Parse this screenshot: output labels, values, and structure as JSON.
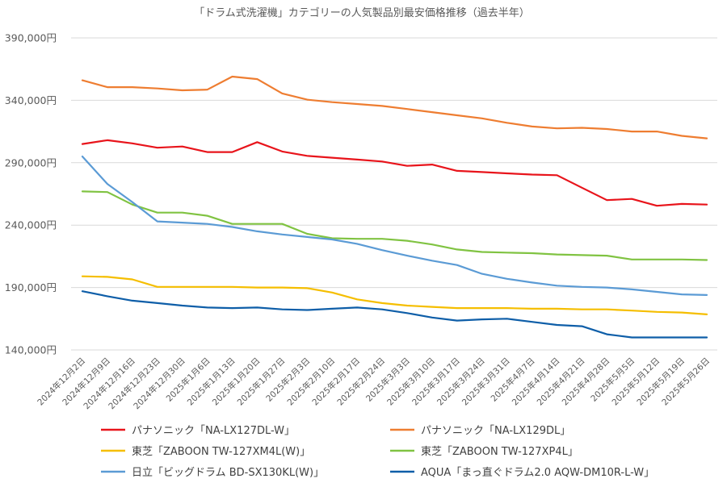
{
  "chart_data": {
    "type": "line",
    "title": "「ドラム式洗濯機」カテゴリーの人気製品別最安価格推移（過去半年）",
    "xlabel": "",
    "ylabel": "",
    "ylim": [
      140000,
      390000
    ],
    "yticks": [
      "140,000円",
      "190,000円",
      "240,000円",
      "290,000円",
      "340,000円",
      "390,000円"
    ],
    "ytick_values": [
      140000,
      190000,
      240000,
      290000,
      340000,
      390000
    ],
    "grid": true,
    "legend_position": "bottom",
    "categories": [
      "2024年12月2日",
      "2024年12月9日",
      "2024年12月16日",
      "2024年12月23日",
      "2024年12月30日",
      "2025年1月6日",
      "2025年1月13日",
      "2025年1月20日",
      "2025年1月27日",
      "2025年2月3日",
      "2025年2月10日",
      "2025年2月17日",
      "2025年2月24日",
      "2025年3月3日",
      "2025年3月10日",
      "2025年3月17日",
      "2025年3月24日",
      "2025年3月31日",
      "2025年4月7日",
      "2025年4月14日",
      "2025年4月21日",
      "2025年4月28日",
      "2025年5月5日",
      "2025年5月12日",
      "2025年5月19日",
      "2025年5月26日"
    ],
    "series": [
      {
        "name": "パナソニック「NA-LX127DL-W」",
        "color": "#e8141b",
        "values": [
          305000,
          308000,
          305500,
          302000,
          303000,
          298500,
          298500,
          306500,
          299000,
          295500,
          294000,
          292500,
          291000,
          287500,
          288500,
          283500,
          282500,
          281500,
          280500,
          280000,
          270000,
          260000,
          261000,
          255500,
          257000,
          256500
        ]
      },
      {
        "name": "パナソニック「NA-LX129DL」",
        "color": "#ee7d31",
        "values": [
          356000,
          350500,
          350500,
          349500,
          348000,
          348500,
          359000,
          357000,
          345500,
          340500,
          338500,
          337000,
          335500,
          333000,
          330500,
          328000,
          325500,
          322000,
          319000,
          317500,
          318000,
          317000,
          315000,
          315000,
          311500,
          309500
        ]
      },
      {
        "name": "東芝「ZABOON TW-127XM4L(W)」",
        "color": "#f5be00",
        "values": [
          199000,
          198500,
          196500,
          190500,
          190500,
          190500,
          190500,
          190000,
          190000,
          189500,
          186000,
          180500,
          177500,
          175500,
          174500,
          173500,
          173500,
          173500,
          173000,
          173000,
          172500,
          172500,
          171500,
          170500,
          170000,
          168500
        ]
      },
      {
        "name": "東芝「ZABOON TW-127XP4L」",
        "color": "#80c342",
        "values": [
          267000,
          266500,
          256500,
          250000,
          250000,
          247500,
          241000,
          241000,
          241000,
          233000,
          229500,
          229000,
          229000,
          227500,
          224500,
          220500,
          218500,
          218000,
          217500,
          216500,
          216000,
          215500,
          212500,
          212500,
          212500,
          212000
        ]
      },
      {
        "name": "日立「ビッグドラム BD-SX130KL(W)」",
        "color": "#5b9bd5",
        "values": [
          295000,
          273000,
          258500,
          243000,
          242000,
          241000,
          238500,
          235000,
          232500,
          230500,
          228500,
          225000,
          220000,
          215500,
          211500,
          208000,
          201000,
          197000,
          194000,
          191500,
          190500,
          190000,
          188500,
          186500,
          184500,
          184000
        ]
      },
      {
        "name": "AQUA「まっ直ぐドラム2.0 AQW-DM10R-L-W」",
        "color": "#0e5ea8",
        "values": [
          187000,
          183000,
          179500,
          177500,
          175500,
          174000,
          173500,
          174000,
          172500,
          172000,
          173000,
          174000,
          172500,
          169500,
          166000,
          163500,
          164500,
          165000,
          162500,
          160000,
          159000,
          152500,
          150000,
          150000,
          150000,
          150000
        ]
      }
    ]
  }
}
